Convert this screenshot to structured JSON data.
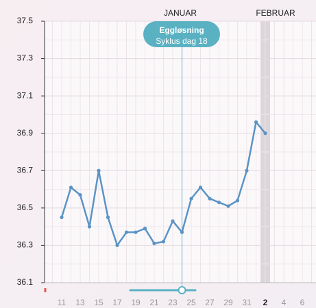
{
  "chart_data": {
    "type": "line",
    "months": [
      "JANUAR",
      "FEBRUAR"
    ],
    "annotation": {
      "title": "Eggløsning",
      "subtitle": "Syklus dag 18"
    },
    "categories": [
      null,
      null,
      "11",
      null,
      "13",
      null,
      "15",
      null,
      "17",
      null,
      "19",
      null,
      "21",
      null,
      "23",
      null,
      "25",
      null,
      "27",
      null,
      "29",
      null,
      "31",
      null,
      "2",
      null,
      "4",
      null,
      "6",
      null
    ],
    "series": [
      {
        "color": "#5b93c4",
        "values": [
          null,
          null,
          36.45,
          36.61,
          36.57,
          36.4,
          36.7,
          36.45,
          36.3,
          36.37,
          36.37,
          36.39,
          36.31,
          36.32,
          36.43,
          36.37,
          36.55,
          36.61,
          36.55,
          36.53,
          36.51,
          36.54,
          36.7,
          36.96,
          36.9,
          null,
          null,
          null,
          null,
          null
        ]
      }
    ],
    "ylim": [
      36.1,
      37.5
    ],
    "yticks": [
      {
        "value": 36.1,
        "label": "36.1"
      },
      {
        "value": 36.3,
        "label": "36.3"
      },
      {
        "value": 36.5,
        "label": "36.5"
      },
      {
        "value": 36.7,
        "label": "36.7"
      },
      {
        "value": 36.9,
        "label": "36.9"
      },
      {
        "value": 37.1,
        "label": "37.1"
      },
      {
        "value": 37.3,
        "label": "37.3"
      },
      {
        "value": 37.5,
        "label": "37.5"
      }
    ],
    "grid": true
  }
}
